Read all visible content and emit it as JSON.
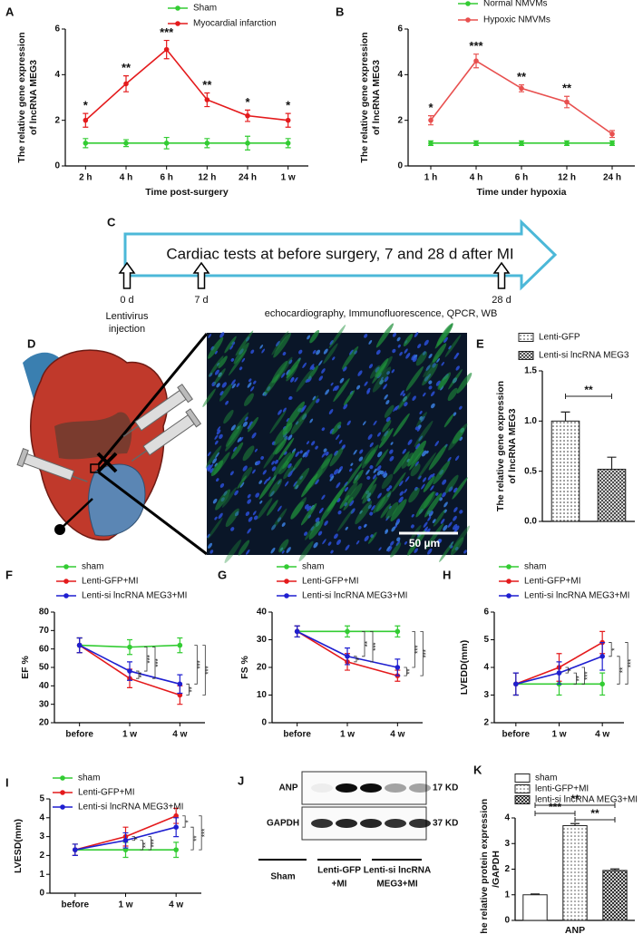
{
  "chart_data": [
    {
      "panel": "A",
      "type": "line",
      "ylabel": [
        "The relative gene expression",
        "of lncRNA MEG3"
      ],
      "xlabel": "Time post-surgery",
      "categories": [
        "2 h",
        "4 h",
        "6 h",
        "12 h",
        "24 h",
        "1 w"
      ],
      "ylim": [
        0,
        6
      ],
      "yticks": [
        0,
        2,
        4,
        6
      ],
      "series": [
        {
          "name": "Sham",
          "color": "#33cc33",
          "values": [
            1.0,
            1.0,
            1.0,
            1.0,
            1.0,
            1.0
          ],
          "errors": [
            0.2,
            0.15,
            0.25,
            0.2,
            0.3,
            0.2
          ]
        },
        {
          "name": "Myocardial infarction",
          "color": "#e41a1c",
          "values": [
            2.0,
            3.6,
            5.1,
            2.9,
            2.2,
            2.0
          ],
          "errors": [
            0.3,
            0.35,
            0.4,
            0.3,
            0.25,
            0.3
          ],
          "annotations": [
            "*",
            "**",
            "***",
            "**",
            "*",
            "*"
          ]
        }
      ]
    },
    {
      "panel": "B",
      "type": "line",
      "ylabel": [
        "The relative gene expression",
        "of lncRNA MEG3"
      ],
      "xlabel": "Time under hypoxia",
      "categories": [
        "1 h",
        "4 h",
        "6 h",
        "12 h",
        "24 h"
      ],
      "ylim": [
        0,
        6
      ],
      "yticks": [
        0,
        2,
        4,
        6
      ],
      "series": [
        {
          "name": "Normal NMVMs",
          "color": "#33cc33",
          "values": [
            1.0,
            1.0,
            1.0,
            1.0,
            1.0
          ],
          "errors": [
            0.1,
            0.1,
            0.1,
            0.1,
            0.1
          ]
        },
        {
          "name": "Hypoxic NMVMs",
          "color": "#e8504f",
          "values": [
            2.0,
            4.6,
            3.4,
            2.8,
            1.4
          ],
          "errors": [
            0.2,
            0.3,
            0.15,
            0.25,
            0.15
          ],
          "annotations": [
            "*",
            "***",
            "**",
            "**",
            null
          ]
        }
      ]
    },
    {
      "panel": "E",
      "type": "bar",
      "ylabel": [
        "The relative gene expression",
        "of lncRNA MEG3"
      ],
      "ylim": [
        0,
        1.5
      ],
      "yticks": [
        {
          "value": 0,
          "label": "0.0"
        },
        {
          "value": 0.5,
          "label": "0.5"
        },
        {
          "value": 1,
          "label": "1.0"
        },
        {
          "value": 1.5,
          "label": "1.5"
        }
      ],
      "series": [
        {
          "name": "Lenti-GFP",
          "color": "#333333",
          "pattern": "dots",
          "values": [
            1.0
          ],
          "errors": [
            0.09
          ]
        },
        {
          "name": "Lenti-si lncRNA MEG3",
          "color": "#333333",
          "pattern": "crosshatch",
          "values": [
            0.52
          ],
          "errors": [
            0.12
          ]
        }
      ],
      "annotations": [
        "**"
      ]
    },
    {
      "panel": "F",
      "type": "line",
      "ylabel": "EF %",
      "categories": [
        "before",
        "1 w",
        "4 w"
      ],
      "ylim": [
        20,
        80
      ],
      "yticks": [
        20,
        30,
        40,
        50,
        60,
        70,
        80
      ],
      "series": [
        {
          "name": "sham",
          "color": "#33cc33",
          "values": [
            62,
            61,
            62
          ],
          "errors": [
            4,
            4,
            4
          ]
        },
        {
          "name": "Lenti-GFP+MI",
          "color": "#e41a1c",
          "values": [
            62,
            44,
            35
          ],
          "errors": [
            4,
            5,
            5
          ]
        },
        {
          "name": "Lenti-si lncRNA MEG3+MI",
          "color": "#1f1fd0",
          "values": [
            62,
            48,
            41
          ],
          "errors": [
            4,
            5,
            5
          ]
        }
      ],
      "annotations": [
        "**",
        "***",
        "***",
        "**",
        "***",
        "***"
      ]
    },
    {
      "panel": "G",
      "type": "line",
      "ylabel": "FS %",
      "categories": [
        "before",
        "1 w",
        "4 w"
      ],
      "ylim": [
        0,
        40
      ],
      "yticks": [
        0,
        10,
        20,
        30,
        40
      ],
      "series": [
        {
          "name": "sham",
          "color": "#33cc33",
          "values": [
            33,
            33,
            33
          ],
          "errors": [
            2,
            2,
            2
          ]
        },
        {
          "name": "Lenti-GFP+MI",
          "color": "#e41a1c",
          "values": [
            33,
            22,
            17
          ],
          "errors": [
            2,
            3,
            2
          ]
        },
        {
          "name": "Lenti-si lncRNA MEG3+MI",
          "color": "#1f1fd0",
          "values": [
            33,
            24,
            20
          ],
          "errors": [
            2,
            3,
            3
          ]
        }
      ],
      "annotations": [
        "*",
        "**",
        "***",
        "**",
        "***",
        "***"
      ]
    },
    {
      "panel": "H",
      "type": "line",
      "ylabel": "LVEDD(mm)",
      "categories": [
        "before",
        "1 w",
        "4 w"
      ],
      "ylim": [
        2,
        6
      ],
      "yticks": [
        2,
        3,
        4,
        5,
        6
      ],
      "series": [
        {
          "name": "sham",
          "color": "#33cc33",
          "values": [
            3.4,
            3.4,
            3.4
          ],
          "errors": [
            0.4,
            0.4,
            0.4
          ]
        },
        {
          "name": "Lenti-GFP+MI",
          "color": "#e41a1c",
          "values": [
            3.4,
            4.0,
            4.9
          ],
          "errors": [
            0.4,
            0.5,
            0.4
          ]
        },
        {
          "name": "Lenti-si lncRNA MEG3+MI",
          "color": "#1f1fd0",
          "values": [
            3.4,
            3.8,
            4.4
          ],
          "errors": [
            0.4,
            0.4,
            0.5
          ]
        }
      ],
      "annotations": [
        "*",
        "**",
        "***",
        "*",
        "**",
        "***"
      ]
    },
    {
      "panel": "I",
      "type": "line",
      "ylabel": "LVESD(mm)",
      "categories": [
        "before",
        "1 w",
        "4 w"
      ],
      "ylim": [
        0,
        5
      ],
      "yticks": [
        0,
        1,
        2,
        3,
        4,
        5
      ],
      "series": [
        {
          "name": "sham",
          "color": "#33cc33",
          "values": [
            2.3,
            2.3,
            2.3
          ],
          "errors": [
            0.3,
            0.4,
            0.4
          ]
        },
        {
          "name": "Lenti-GFP+MI",
          "color": "#e41a1c",
          "values": [
            2.3,
            3.0,
            4.1
          ],
          "errors": [
            0.3,
            0.5,
            0.4
          ]
        },
        {
          "name": "Lenti-si lncRNA MEG3+MI",
          "color": "#1f1fd0",
          "values": [
            2.3,
            2.8,
            3.5
          ],
          "errors": [
            0.3,
            0.4,
            0.5
          ]
        }
      ],
      "annotations": [
        "*",
        "**",
        "***",
        "*",
        "**",
        "***"
      ]
    },
    {
      "panel": "K",
      "type": "bar",
      "ylabel": [
        "The relative protein expression",
        "/GAPDH"
      ],
      "categories": [
        "ANP"
      ],
      "ylim": [
        0,
        4
      ],
      "yticks": [
        0,
        1,
        2,
        3,
        4
      ],
      "series": [
        {
          "name": "sham",
          "color": "#333333",
          "pattern": "none",
          "values": [
            1.0
          ],
          "errors": [
            0.03
          ]
        },
        {
          "name": "lenti-GFP+MI",
          "color": "#555555",
          "pattern": "dots",
          "values": [
            3.7
          ],
          "errors": [
            0.08
          ]
        },
        {
          "name": "lenti-si lncRNA MEG3+MI",
          "color": "#111111",
          "pattern": "crosshatch",
          "values": [
            1.95
          ],
          "errors": [
            0.06
          ]
        }
      ],
      "annotations": [
        "**",
        "***",
        "**"
      ]
    }
  ],
  "timeline": {
    "panel": "C",
    "banner": "Cardiac tests at before surgery, 7 and 28 d after MI",
    "markers": [
      "0 d",
      "7 d",
      "28 d"
    ],
    "start_note": [
      "Lentivirus",
      "injection"
    ],
    "tests": "echocardiography, Immunofluorescence, QPCR, WB"
  },
  "histology": {
    "panel": "D",
    "scale_bar": "50 µm"
  },
  "blot": {
    "panel": "J",
    "rows": [
      "ANP",
      "GAPDH"
    ],
    "sizes": [
      "17 KD",
      "37 KD"
    ],
    "groups": [
      [
        "Sham"
      ],
      [
        "Lenti-GFP",
        "+MI"
      ],
      [
        "Lenti-si lncRNA",
        "MEG3+MI"
      ]
    ]
  }
}
